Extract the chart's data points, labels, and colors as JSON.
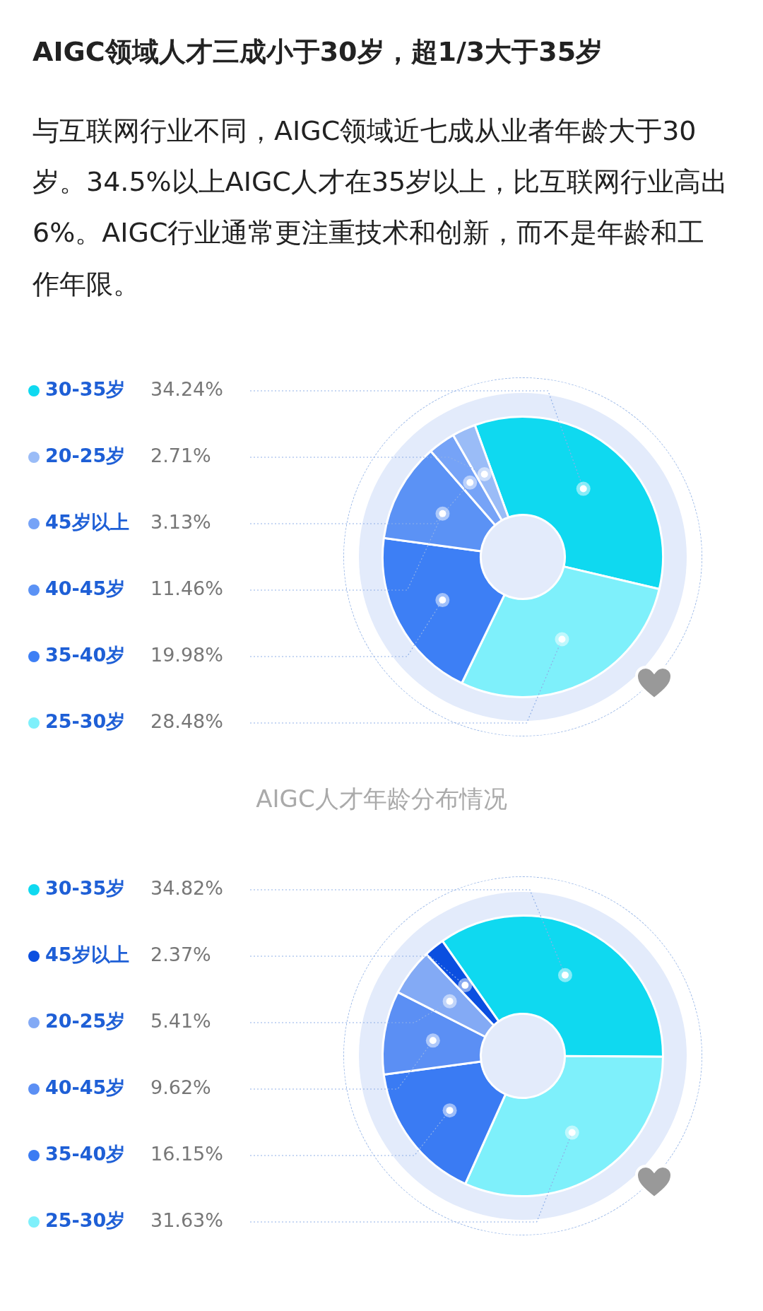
{
  "chart_data": [
    {
      "type": "donut",
      "title": "AIGC领域人才三成小于30岁，超1/3大于35岁",
      "subtitle": "与互联网行业不同，AIGC领域近七成从业者年龄大于30岁。34.5%以上AIGC人才在35岁以上，比互联网行业高出6%。AIGC行业通常更注重技术和创新，而不是年龄和工作年限。",
      "categories": [
        "30-35岁",
        "25-30岁",
        "35-40岁",
        "40-45岁",
        "45岁以上",
        "20-25岁"
      ],
      "values": [
        34.24,
        28.48,
        19.98,
        11.46,
        3.13,
        2.71
      ],
      "value_labels": [
        "34.24%",
        "28.48%",
        "19.98%",
        "11.46%",
        "3.13%",
        "2.71%"
      ],
      "colors": [
        "#0fd9f0",
        "#7ef0fb",
        "#3d7ff5",
        "#5b92f5",
        "#76a3f7",
        "#9abcf7"
      ],
      "annotations": [
        "AIGC人才年龄分布情况"
      ],
      "legend": "left"
    },
    {
      "type": "donut",
      "categories": [
        "30-35岁",
        "25-30岁",
        "35-40岁",
        "40-45岁",
        "20-25岁",
        "45岁以上"
      ],
      "values": [
        34.82,
        31.63,
        16.15,
        9.62,
        5.41,
        2.37
      ],
      "value_labels": [
        "34.82%",
        "31.63%",
        "16.15%",
        "9.62%",
        "5.41%",
        "2.37%"
      ],
      "colors": [
        "#0fd9f0",
        "#7ef0fb",
        "#3a7bf3",
        "#5b8ff4",
        "#83aaf5",
        "#0b4fe0"
      ],
      "legend": "left"
    }
  ]
}
